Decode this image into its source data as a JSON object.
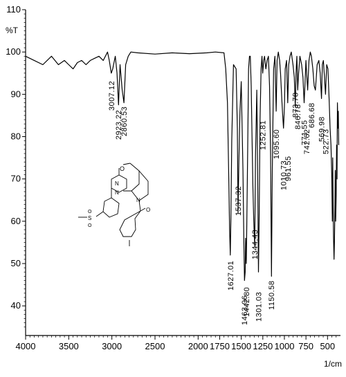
{
  "chart_data": {
    "type": "line",
    "title": "",
    "ylabel": "%T",
    "xlabel": "1/cm",
    "xlim": [
      4000,
      350
    ],
    "ylim": [
      33,
      110
    ],
    "x_ticks": [
      4000,
      3500,
      3000,
      2500,
      2000,
      1750,
      1500,
      1250,
      1000,
      750,
      500
    ],
    "x_tick_labels": [
      "4000",
      "3500",
      "3000",
      "2500",
      "2000",
      "1750",
      "1500",
      "1250",
      "1000",
      "750",
      "500"
    ],
    "y_ticks": [
      40,
      50,
      60,
      70,
      80,
      90,
      100,
      110
    ],
    "y_tick_labels": [
      "40",
      "50",
      "60",
      "70",
      "80",
      "90",
      "100",
      "110"
    ],
    "grid": false,
    "series": [
      {
        "x": [
          4000,
          3900,
          3800,
          3700,
          3620,
          3550,
          3500,
          3450,
          3400,
          3350,
          3300,
          3250,
          3200,
          3150,
          3100,
          3050,
          3030,
          3007,
          2990,
          2960,
          2940,
          2923,
          2905,
          2880,
          2860,
          2840,
          2810,
          2780,
          2700,
          2500,
          2300,
          2100,
          2000,
          1900,
          1800,
          1700,
          1680,
          1660,
          1645,
          1635,
          1627,
          1620,
          1610,
          1590,
          1560,
          1545,
          1537,
          1528,
          1515,
          1500,
          1480,
          1470,
          1463,
          1455,
          1450,
          1442,
          1435,
          1425,
          1415,
          1405,
          1395,
          1385,
          1375,
          1365,
          1355,
          1344,
          1335,
          1320,
          1310,
          1301,
          1292,
          1282,
          1270,
          1260,
          1252,
          1240,
          1230,
          1215,
          1200,
          1185,
          1172,
          1160,
          1150,
          1140,
          1125,
          1110,
          1095,
          1085,
          1070,
          1055,
          1045,
          1030,
          1020,
          1010,
          1000,
          990,
          975,
          961,
          950,
          935,
          920,
          900,
          885,
          874,
          865,
          855,
          846,
          835,
          820,
          800,
          785,
          771,
          760,
          750,
          742,
          730,
          715,
          700,
          687,
          670,
          655,
          640,
          620,
          600,
          585,
          570,
          560,
          548,
          535,
          523,
          510,
          495,
          480,
          470,
          460,
          450,
          445,
          440,
          435,
          430,
          425,
          420,
          415,
          410,
          405,
          400,
          395,
          390,
          385,
          380,
          375,
          370
        ],
        "y": [
          99,
          98,
          97,
          99,
          97,
          98,
          97,
          96,
          97.5,
          98,
          97,
          98,
          98.5,
          99,
          98,
          100,
          98,
          95,
          96,
          99,
          95,
          87.5,
          97,
          91,
          88,
          97,
          99,
          100,
          99.8,
          99.5,
          99.8,
          99.6,
          99.7,
          99.8,
          100,
          99.8,
          96,
          88,
          70,
          58,
          52,
          61,
          79,
          97,
          96,
          82,
          62,
          74,
          86,
          93,
          72,
          55,
          46,
          48,
          56,
          50,
          60,
          78,
          96,
          99,
          99,
          92,
          80,
          68,
          60,
          54,
          75,
          91,
          72,
          48,
          62,
          84,
          96,
          99,
          95,
          98,
          99,
          96,
          98,
          99,
          92,
          76,
          47,
          72,
          96,
          99,
          86,
          98,
          100,
          98,
          95,
          89,
          85,
          82,
          87,
          96,
          98,
          88,
          97,
          99,
          100,
          97,
          94,
          87,
          95,
          99,
          91,
          95,
          99,
          97,
          94,
          88,
          93,
          98,
          95,
          91,
          98,
          100,
          99,
          96,
          92,
          91,
          97,
          98,
          95,
          89,
          97,
          98,
          94,
          90,
          97,
          96,
          88,
          82,
          78,
          70,
          60,
          75,
          64,
          56,
          51,
          55,
          63,
          72,
          60,
          66,
          78,
          70,
          88,
          82,
          86,
          78
        ]
      }
    ],
    "peak_labels": [
      "3007.12",
      "2923.22",
      "2860.53",
      "1627.01",
      "1537.32",
      "1463.06",
      "1442.80",
      "1344.43",
      "1301.03",
      "1252.81",
      "1150.58",
      "1095.60",
      "1010.73",
      "961.55",
      "873.78",
      "846.78",
      "771.55",
      "742.62",
      "686.68",
      "569.98",
      "522.73"
    ]
  }
}
